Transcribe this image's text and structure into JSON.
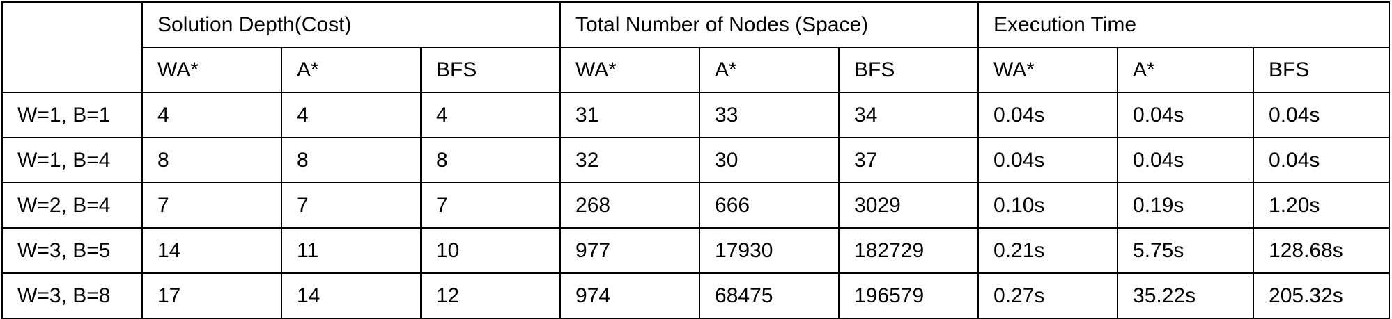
{
  "table": {
    "group_headers": [
      "Solution Depth(Cost)",
      "Total Number of Nodes (Space)",
      "Execution Time"
    ],
    "sub_headers": [
      "WA*",
      "A*",
      "BFS",
      "WA*",
      "A*",
      "BFS",
      "WA*",
      "A*",
      "BFS"
    ],
    "rows": [
      {
        "label": "W=1, B=1",
        "cells": [
          "4",
          "4",
          "4",
          "31",
          "33",
          "34",
          "0.04s",
          "0.04s",
          "0.04s"
        ]
      },
      {
        "label": "W=1, B=4",
        "cells": [
          "8",
          "8",
          "8",
          "32",
          "30",
          "37",
          "0.04s",
          "0.04s",
          "0.04s"
        ]
      },
      {
        "label": "W=2, B=4",
        "cells": [
          "7",
          "7",
          "7",
          "268",
          "666",
          "3029",
          "0.10s",
          "0.19s",
          "1.20s"
        ]
      },
      {
        "label": "W=3, B=5",
        "cells": [
          "14",
          "11",
          "10",
          "977",
          "17930",
          "182729",
          "0.21s",
          "5.75s",
          "128.68s"
        ]
      },
      {
        "label": "W=3, B=8",
        "cells": [
          "17",
          "14",
          "12",
          "974",
          "68475",
          "196579",
          "0.27s",
          "35.22s",
          "205.32s"
        ]
      }
    ]
  }
}
